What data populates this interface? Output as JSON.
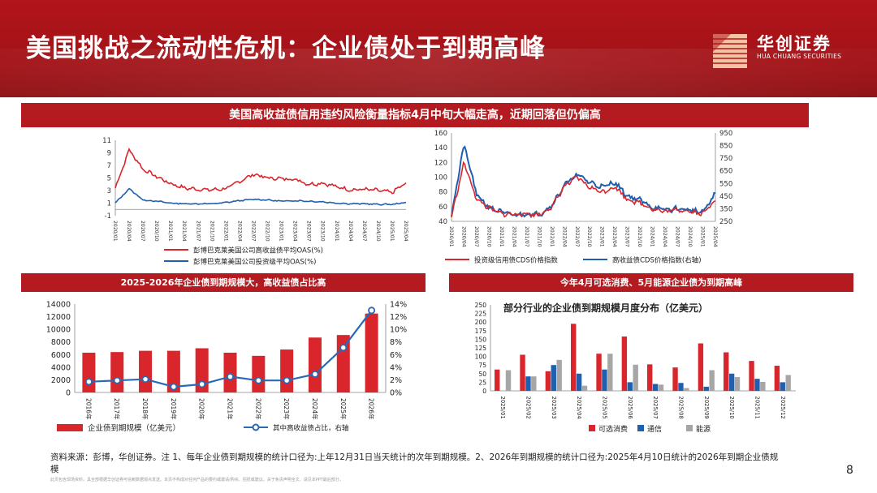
{
  "header": {
    "title": "美国挑战之流动性危机：企业债处于到期高峰",
    "logo_name": "华创证券",
    "logo_en": "HUA CHUANG SECURITIES"
  },
  "band1": "美国高收益债信用违约风险衡量指标4月中旬大幅走高，近期回落但仍偏高",
  "band2": "2025-2026年企业债到期规模大，高收益债占比高",
  "band3": "今年4月可选消费、5月能源企业债为到期高峰",
  "source": "资料来源：彭博，华创证券。注 1、每年企业债到期规模的统计口径为:上年12月31日当天统计的次年到期规模。2、2026年到期规模的统计口径为:2025年4月10日统计的2026年到期企业债规模",
  "disclaimer": "此页包含现场资料，具全部根据华创证券可信赖数据观点发送。本页不构成对任何产品的要约或邀请/购买、招揽或建议。关于免责声明全文、请见本PPT最后部分。",
  "page_number": "8",
  "colors": {
    "red": "#d9262c",
    "blue": "#1f5fb0",
    "gray": "#a6a6a6",
    "band": "#b31b20"
  },
  "chart_data": [
    {
      "type": "line",
      "x": [
        "2020/01",
        "2020/04",
        "2020/07",
        "2020/10",
        "2021/01",
        "2021/04",
        "2021/07",
        "2021/10",
        "2022/01",
        "2022/04",
        "2022/07",
        "2022/10",
        "2023/01",
        "2023/04",
        "2023/07",
        "2023/10",
        "2024/01",
        "2024/04",
        "2024/07",
        "2024/10",
        "2025/01",
        "2025/04"
      ],
      "ylim": [
        -1,
        11
      ],
      "yticks": [
        "11",
        "9",
        "7",
        "5",
        "3",
        "1",
        "-1"
      ],
      "series": [
        {
          "name": "彭博巴克莱美国公司高收益债平均OAS(%)",
          "color": "#d9262c",
          "values": [
            3.4,
            9.5,
            6.4,
            5.2,
            4.1,
            3.4,
            3.2,
            3.1,
            3.3,
            4.5,
            5.6,
            5.0,
            4.9,
            4.8,
            4.0,
            4.2,
            3.6,
            3.1,
            3.2,
            3.0,
            2.7,
            4.2
          ]
        },
        {
          "name": "彭博巴克莱美国公司投资级平均OAS(%)",
          "color": "#1f5fb0",
          "values": [
            1.0,
            3.3,
            1.5,
            1.3,
            1.0,
            0.9,
            0.9,
            0.9,
            1.1,
            1.4,
            1.6,
            1.5,
            1.3,
            1.4,
            1.3,
            1.2,
            1.0,
            0.9,
            0.9,
            0.8,
            0.8,
            1.1
          ]
        }
      ]
    },
    {
      "type": "line",
      "x": [
        "2020/01",
        "2020/04",
        "2020/07",
        "2020/10",
        "2021/01",
        "2021/04",
        "2021/07",
        "2021/10",
        "2022/01",
        "2022/04",
        "2022/07",
        "2022/10",
        "2023/01",
        "2023/04",
        "2023/07",
        "2023/10",
        "2024/01",
        "2024/04",
        "2024/07",
        "2024/10",
        "2025/01",
        "2025/04"
      ],
      "ylim": [
        40,
        160
      ],
      "yticks": [
        "160",
        "140",
        "120",
        "100",
        "80",
        "60",
        "40"
      ],
      "ylim_right": [
        250,
        950
      ],
      "yticks_right": [
        "950",
        "850",
        "750",
        "650",
        "550",
        "450",
        "350",
        "250"
      ],
      "series": [
        {
          "name": "投资级信用债CDS价格指数",
          "color": "#d9262c",
          "values": [
            46,
            120,
            70,
            58,
            50,
            50,
            50,
            49,
            60,
            88,
            100,
            86,
            80,
            87,
            70,
            65,
            57,
            53,
            56,
            54,
            50,
            70
          ]
        },
        {
          "name": "高收益债CDS价格指数(右轴)",
          "color": "#1f5fb0",
          "values": [
            300,
            860,
            460,
            360,
            320,
            300,
            310,
            305,
            380,
            540,
            620,
            560,
            520,
            560,
            450,
            420,
            360,
            340,
            350,
            340,
            320,
            470
          ]
        }
      ]
    },
    {
      "type": "bar",
      "categories": [
        "2016年",
        "2017年",
        "2018年",
        "2019年",
        "2020年",
        "2021年",
        "2022年",
        "2023年",
        "2024年",
        "2025年",
        "2026年"
      ],
      "ylim": [
        0,
        14000
      ],
      "yticks": [
        "14000",
        "12000",
        "10000",
        "8000",
        "6000",
        "4000",
        "2000",
        "0"
      ],
      "ylim_right": [
        0,
        14
      ],
      "yticks_right": [
        "14%",
        "12%",
        "10%",
        "8%",
        "6%",
        "4%",
        "2%",
        "0%"
      ],
      "series": [
        {
          "name": "企业债到期规模（亿美元）",
          "color": "#d9262c",
          "kind": "bar",
          "values": [
            6300,
            6400,
            6600,
            6600,
            7000,
            6300,
            5800,
            6800,
            8700,
            9100,
            12500
          ]
        },
        {
          "name": "其中高收益债占比，右轴",
          "color": "#2a69b3",
          "kind": "line",
          "values": [
            1.7,
            1.9,
            2.1,
            0.9,
            1.3,
            2.5,
            1.9,
            1.9,
            2.9,
            7.1,
            13.0
          ]
        }
      ]
    },
    {
      "type": "bar",
      "title": "部分行业的企业债到期规模月度分布（亿美元）",
      "categories": [
        "2025/01",
        "2025/02",
        "2025/03",
        "2025/04",
        "2025/05",
        "2025/06",
        "2025/07",
        "2025/08",
        "2025/09",
        "2025/10",
        "2025/11",
        "2025/12"
      ],
      "ylim": [
        0,
        250
      ],
      "yticks": [
        "250",
        "225",
        "200",
        "175",
        "150",
        "125",
        "100",
        "75",
        "50",
        "25",
        "0"
      ],
      "series": [
        {
          "name": "可选消费",
          "color": "#d9262c",
          "values": [
            62,
            105,
            57,
            195,
            108,
            158,
            77,
            68,
            138,
            112,
            87,
            73
          ]
        },
        {
          "name": "通信",
          "color": "#1f5fb0",
          "values": [
            0,
            42,
            75,
            50,
            62,
            25,
            20,
            23,
            12,
            50,
            35,
            25
          ]
        },
        {
          "name": "能源",
          "color": "#a6a6a6",
          "values": [
            60,
            42,
            90,
            15,
            108,
            76,
            18,
            8,
            60,
            40,
            26,
            46
          ]
        }
      ]
    }
  ]
}
